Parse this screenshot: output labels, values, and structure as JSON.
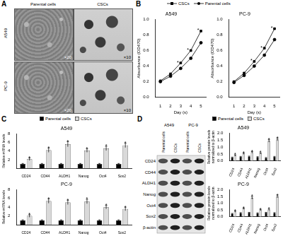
{
  "panel_letters": [
    "A",
    "B",
    "C",
    "D"
  ],
  "images": {
    "columns": [
      "Parental cells",
      "CSCs"
    ],
    "rows": [
      {
        "label": "A549",
        "magnifications": [
          "×20",
          "×10"
        ]
      },
      {
        "label": "PC-9",
        "magnifications": [
          "×20",
          "×10"
        ]
      }
    ]
  },
  "blot": {
    "cell_lines": [
      "A549",
      "PC-9"
    ],
    "lanes": [
      "Parental cells",
      "CSCs",
      "Parental cells",
      "CSCs"
    ],
    "proteins": [
      "CD24",
      "CD44",
      "ALDH1",
      "Nanog",
      "Oct4",
      "Sox2",
      "β-actin"
    ]
  },
  "chart_data": [
    {
      "type": "line",
      "title": "A549",
      "x_label": "Day (s)",
      "y_label": "Absorbance (OD470)",
      "x": [
        1,
        2,
        3,
        4,
        5
      ],
      "xlim": [
        0.5,
        5.5
      ],
      "xticks": [
        1,
        2,
        3,
        4,
        5
      ],
      "ylim": [
        0,
        1
      ],
      "yticks": [
        {
          "value": 0,
          "label": "0.0"
        },
        0.2,
        0.4,
        0.6,
        0.8,
        {
          "value": 1,
          "label": "1.0"
        }
      ],
      "grid": false,
      "legend": "top",
      "series": [
        {
          "name": "CSCs",
          "color": "#000000",
          "marker": "square",
          "values": [
            0.21,
            0.3,
            0.44,
            0.6,
            0.85
          ],
          "annotations": [
            null,
            null,
            "*",
            "*",
            "*"
          ]
        },
        {
          "name": "Parental cells",
          "color": "#000000",
          "marker": "circle",
          "values": [
            0.2,
            0.27,
            0.37,
            0.5,
            0.7
          ]
        }
      ]
    },
    {
      "type": "line",
      "title": "PC-9",
      "x_label": "Day (s)",
      "y_label": "Absorbance (OD470)",
      "x": [
        1,
        2,
        3,
        4,
        5
      ],
      "xlim": [
        0.5,
        5.5
      ],
      "xticks": [
        1,
        2,
        3,
        4,
        5
      ],
      "ylim": [
        0,
        1
      ],
      "yticks": [
        {
          "value": 0,
          "label": "0.0"
        },
        0.2,
        0.4,
        0.6,
        0.8,
        {
          "value": 1,
          "label": "1.0"
        }
      ],
      "grid": false,
      "series": [
        {
          "name": "CSCs",
          "color": "#000000",
          "marker": "square",
          "values": [
            0.2,
            0.31,
            0.46,
            0.63,
            0.88
          ],
          "annotations": [
            null,
            null,
            "*",
            "*",
            "*"
          ]
        },
        {
          "name": "Parental cells",
          "color": "#000000",
          "marker": "circle",
          "values": [
            0.19,
            0.28,
            0.4,
            0.54,
            0.74
          ]
        }
      ]
    },
    {
      "type": "bar",
      "title": "A549",
      "y_label": "Relative mRNA levels",
      "categories": [
        "CD24",
        "CD44",
        "ALDH1",
        "Nanog",
        "Oct4",
        "Sox2"
      ],
      "ylim": [
        0,
        8
      ],
      "yticks": [
        0,
        2,
        4,
        6,
        8
      ],
      "grid": false,
      "legend": "top",
      "series": [
        {
          "name": "Parental cells",
          "color": "#000000",
          "values": [
            1,
            1,
            1,
            1,
            1,
            1
          ],
          "errors": [
            0.1,
            0.1,
            0.1,
            0.1,
            0.1,
            0.1
          ]
        },
        {
          "name": "CSCs",
          "color": "#d9d9d9",
          "values": [
            2.1,
            4.2,
            5.6,
            4.1,
            4.6,
            5.3
          ],
          "errors": [
            0.3,
            0.5,
            0.6,
            0.4,
            0.5,
            0.5
          ],
          "annotations": [
            "*",
            "*",
            "*",
            "*",
            "*",
            "*"
          ]
        }
      ]
    },
    {
      "type": "bar",
      "title": "PC-9",
      "y_label": "Relative mRNA levels",
      "categories": [
        "CD24",
        "CD44",
        "ALDH1",
        "Nanog",
        "Oct4",
        "Sox2"
      ],
      "ylim": [
        0,
        8
      ],
      "yticks": [
        0,
        2,
        4,
        6,
        8
      ],
      "grid": false,
      "series": [
        {
          "name": "Parental cells",
          "color": "#000000",
          "values": [
            1,
            1,
            1,
            1,
            1,
            1
          ],
          "errors": [
            0.1,
            0.1,
            0.1,
            0.1,
            0.1,
            0.1
          ]
        },
        {
          "name": "CSCs",
          "color": "#d9d9d9",
          "values": [
            2.0,
            5.4,
            5.1,
            5.3,
            4.0,
            3.6
          ],
          "errors": [
            0.3,
            0.5,
            0.5,
            0.5,
            0.4,
            0.4
          ],
          "annotations": [
            "*",
            "*",
            "*",
            "*",
            "*",
            "*"
          ]
        }
      ]
    },
    {
      "type": "bar",
      "title": "A549",
      "y_label": "Relative protein levels normalized to β-actin",
      "categories": [
        "CD24",
        "CD44",
        "ALDH1",
        "Nanog",
        "Oct4",
        "Sox2"
      ],
      "ylim": [
        0,
        2
      ],
      "yticks": [
        {
          "value": 0,
          "label": "0.0"
        },
        0.5,
        {
          "value": 1,
          "label": "1.0"
        },
        1.5,
        {
          "value": 2,
          "label": "2.0"
        }
      ],
      "grid": false,
      "legend": "top",
      "series": [
        {
          "name": "Parental cells",
          "color": "#000000",
          "values": [
            0.25,
            0.3,
            0.32,
            0.28,
            0.22,
            0.3
          ],
          "errors": [
            0.03,
            0.03,
            0.03,
            0.03,
            0.03,
            0.03
          ]
        },
        {
          "name": "CSCs",
          "color": "#d9d9d9",
          "values": [
            0.4,
            0.52,
            0.62,
            0.55,
            1.45,
            1.55
          ],
          "errors": [
            0.05,
            0.05,
            0.06,
            0.05,
            0.1,
            0.1
          ],
          "annotations": [
            "*",
            "*",
            "*",
            "*",
            "*",
            "*"
          ]
        }
      ]
    },
    {
      "type": "bar",
      "title": "PC-9",
      "y_label": "Relative protein levels normalized to β-actin",
      "categories": [
        "CD24",
        "CD44",
        "ALDH1",
        "Nanog",
        "Oct4",
        "Sox2"
      ],
      "ylim": [
        0,
        2
      ],
      "yticks": [
        {
          "value": 0,
          "label": "0.0"
        },
        0.5,
        {
          "value": 1,
          "label": "1.0"
        },
        1.5,
        {
          "value": 2,
          "label": "2.0"
        }
      ],
      "grid": false,
      "series": [
        {
          "name": "Parental cells",
          "color": "#000000",
          "values": [
            0.22,
            0.28,
            0.3,
            0.26,
            0.3,
            0.28
          ],
          "errors": [
            0.03,
            0.03,
            0.03,
            0.03,
            0.03,
            0.03
          ]
        },
        {
          "name": "CSCs",
          "color": "#d9d9d9",
          "values": [
            0.38,
            0.6,
            1.4,
            0.5,
            0.52,
            1.5
          ],
          "errors": [
            0.05,
            0.05,
            0.1,
            0.05,
            0.05,
            0.1
          ],
          "annotations": [
            "*",
            "*",
            "*",
            "*",
            "*",
            "*"
          ]
        }
      ]
    }
  ]
}
